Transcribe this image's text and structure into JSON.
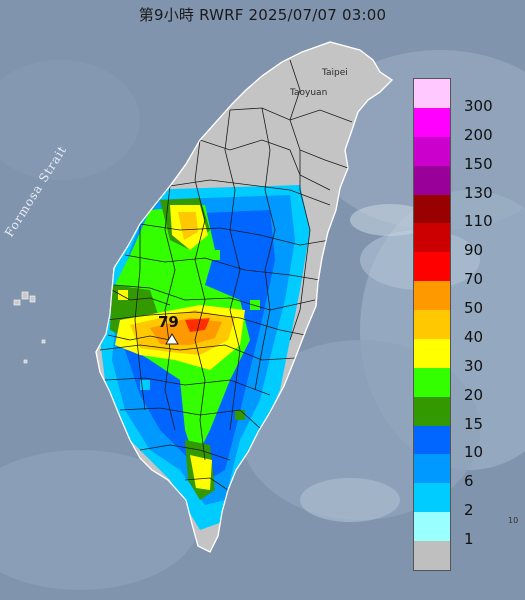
{
  "title": "第9小時  RWRF 2025/07/07 03:00",
  "labels": {
    "strait": "Formosa Strait",
    "taipei": "Taipei",
    "taoyuan": "Taoyuan",
    "corner": "10"
  },
  "max_marker": "79",
  "legend": [
    {
      "label": "300",
      "color": "#ffc8ff"
    },
    {
      "label": "200",
      "color": "#ff00ff"
    },
    {
      "label": "150",
      "color": "#cc00cc"
    },
    {
      "label": "130",
      "color": "#990099"
    },
    {
      "label": "110",
      "color": "#990000"
    },
    {
      "label": "90",
      "color": "#cc0000"
    },
    {
      "label": "70",
      "color": "#ff0000"
    },
    {
      "label": "50",
      "color": "#ff9900"
    },
    {
      "label": "40",
      "color": "#ffc800"
    },
    {
      "label": "30",
      "color": "#ffff00"
    },
    {
      "label": "20",
      "color": "#33ff00"
    },
    {
      "label": "15",
      "color": "#339900"
    },
    {
      "label": "10",
      "color": "#0066ff"
    },
    {
      "label": "6",
      "color": "#0099ff"
    },
    {
      "label": "2",
      "color": "#00ccff"
    },
    {
      "label": "1",
      "color": "#99ffff"
    },
    {
      "label": "",
      "color": "#bfbfbf"
    }
  ]
}
